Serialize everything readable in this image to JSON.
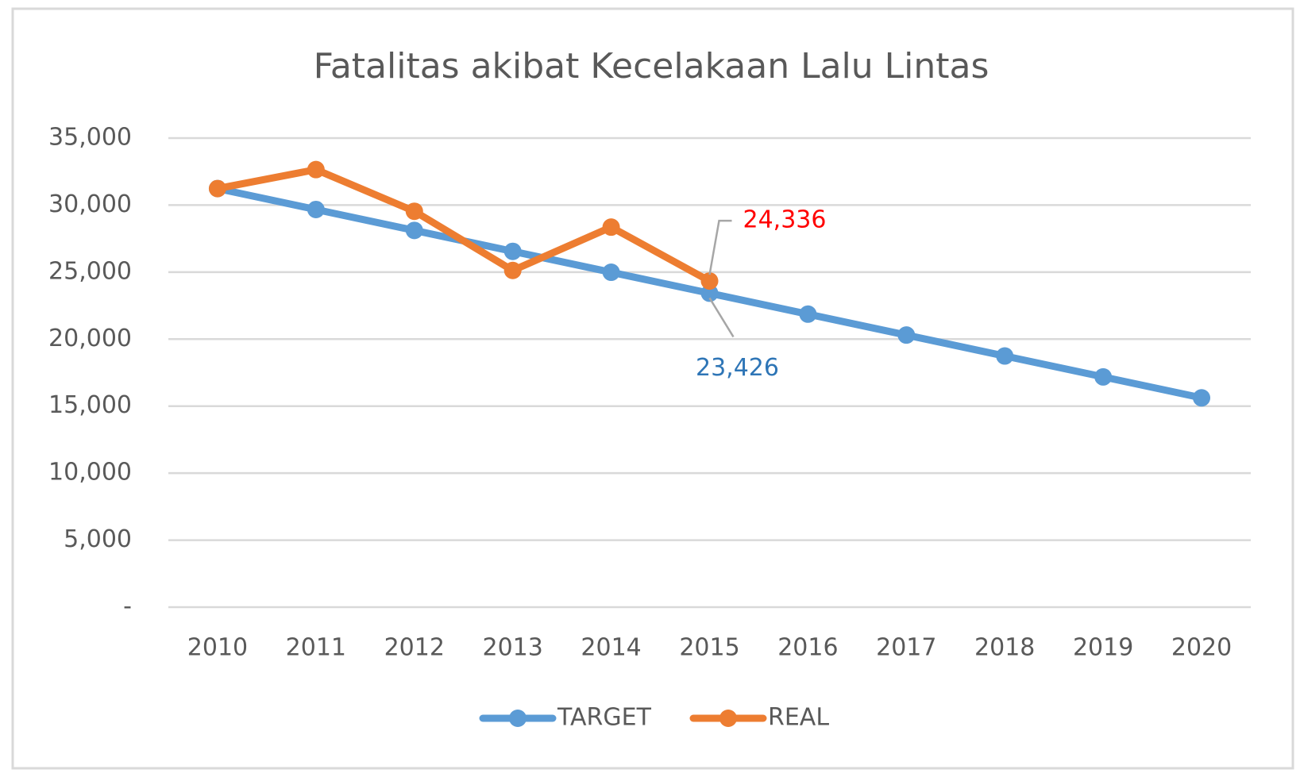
{
  "chart_data": {
    "type": "line",
    "title": "Fatalitas akibat Kecelakaan Lalu Lintas",
    "categories": [
      "2010",
      "2011",
      "2012",
      "2013",
      "2014",
      "2015",
      "2016",
      "2017",
      "2018",
      "2019",
      "2020"
    ],
    "series": [
      {
        "name": "TARGET",
        "color": "#5b9bd5",
        "label_color": "#2e75b6",
        "values": [
          31234,
          29672,
          28111,
          26549,
          24988,
          23426,
          21864,
          20303,
          18741,
          17180,
          15618
        ],
        "value_labels": [
          null,
          null,
          null,
          null,
          null,
          "23,426",
          null,
          null,
          null,
          null,
          null
        ]
      },
      {
        "name": "REAL",
        "color": "#ed7d31",
        "label_color": "#ff0000",
        "values": [
          31234,
          32650,
          29540,
          25124,
          28358,
          24336,
          null,
          null,
          null,
          null,
          null
        ],
        "value_labels": [
          null,
          null,
          null,
          null,
          null,
          "24,336",
          null,
          null,
          null,
          null,
          null
        ]
      }
    ],
    "ylim": [
      0,
      35000
    ],
    "yticks": [
      {
        "value": 0,
        "label": "-"
      },
      {
        "value": 5000,
        "label": "5,000"
      },
      {
        "value": 10000,
        "label": "10,000"
      },
      {
        "value": 15000,
        "label": "15,000"
      },
      {
        "value": 20000,
        "label": "20,000"
      },
      {
        "value": 25000,
        "label": "25,000"
      },
      {
        "value": 30000,
        "label": "30,000"
      },
      {
        "value": 35000,
        "label": "35,000"
      }
    ],
    "grid": true,
    "legend": "bottom"
  }
}
